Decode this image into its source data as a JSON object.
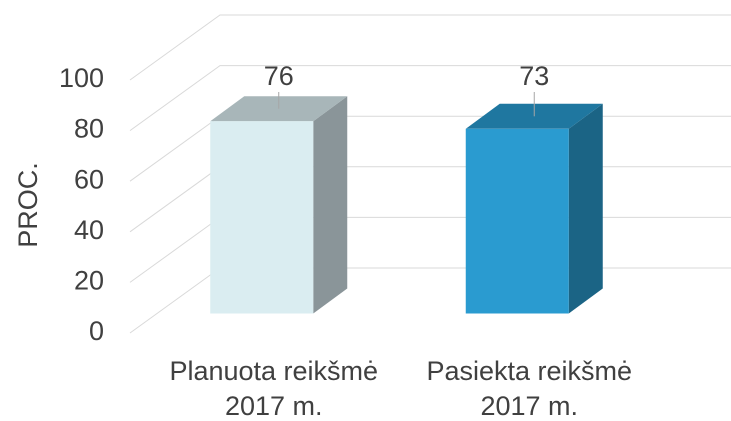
{
  "chart_data": {
    "type": "bar3d",
    "y_label": "PROC.",
    "categories": [
      [
        "Planuota reikšmė",
        "2017 m."
      ],
      [
        "Pasiekta reikšmė",
        "2017 m."
      ]
    ],
    "values": [
      76,
      73
    ],
    "colors": [
      {
        "front": "#daedf1",
        "side": "#8a9599",
        "top": "#a8b6b9"
      },
      {
        "front": "#2a9bd0",
        "side": "#1b6485",
        "top": "#1f77a0"
      }
    ],
    "ylim": [
      0,
      100
    ],
    "yticks": [
      0,
      20,
      40,
      60,
      80,
      100
    ],
    "grid": true
  }
}
